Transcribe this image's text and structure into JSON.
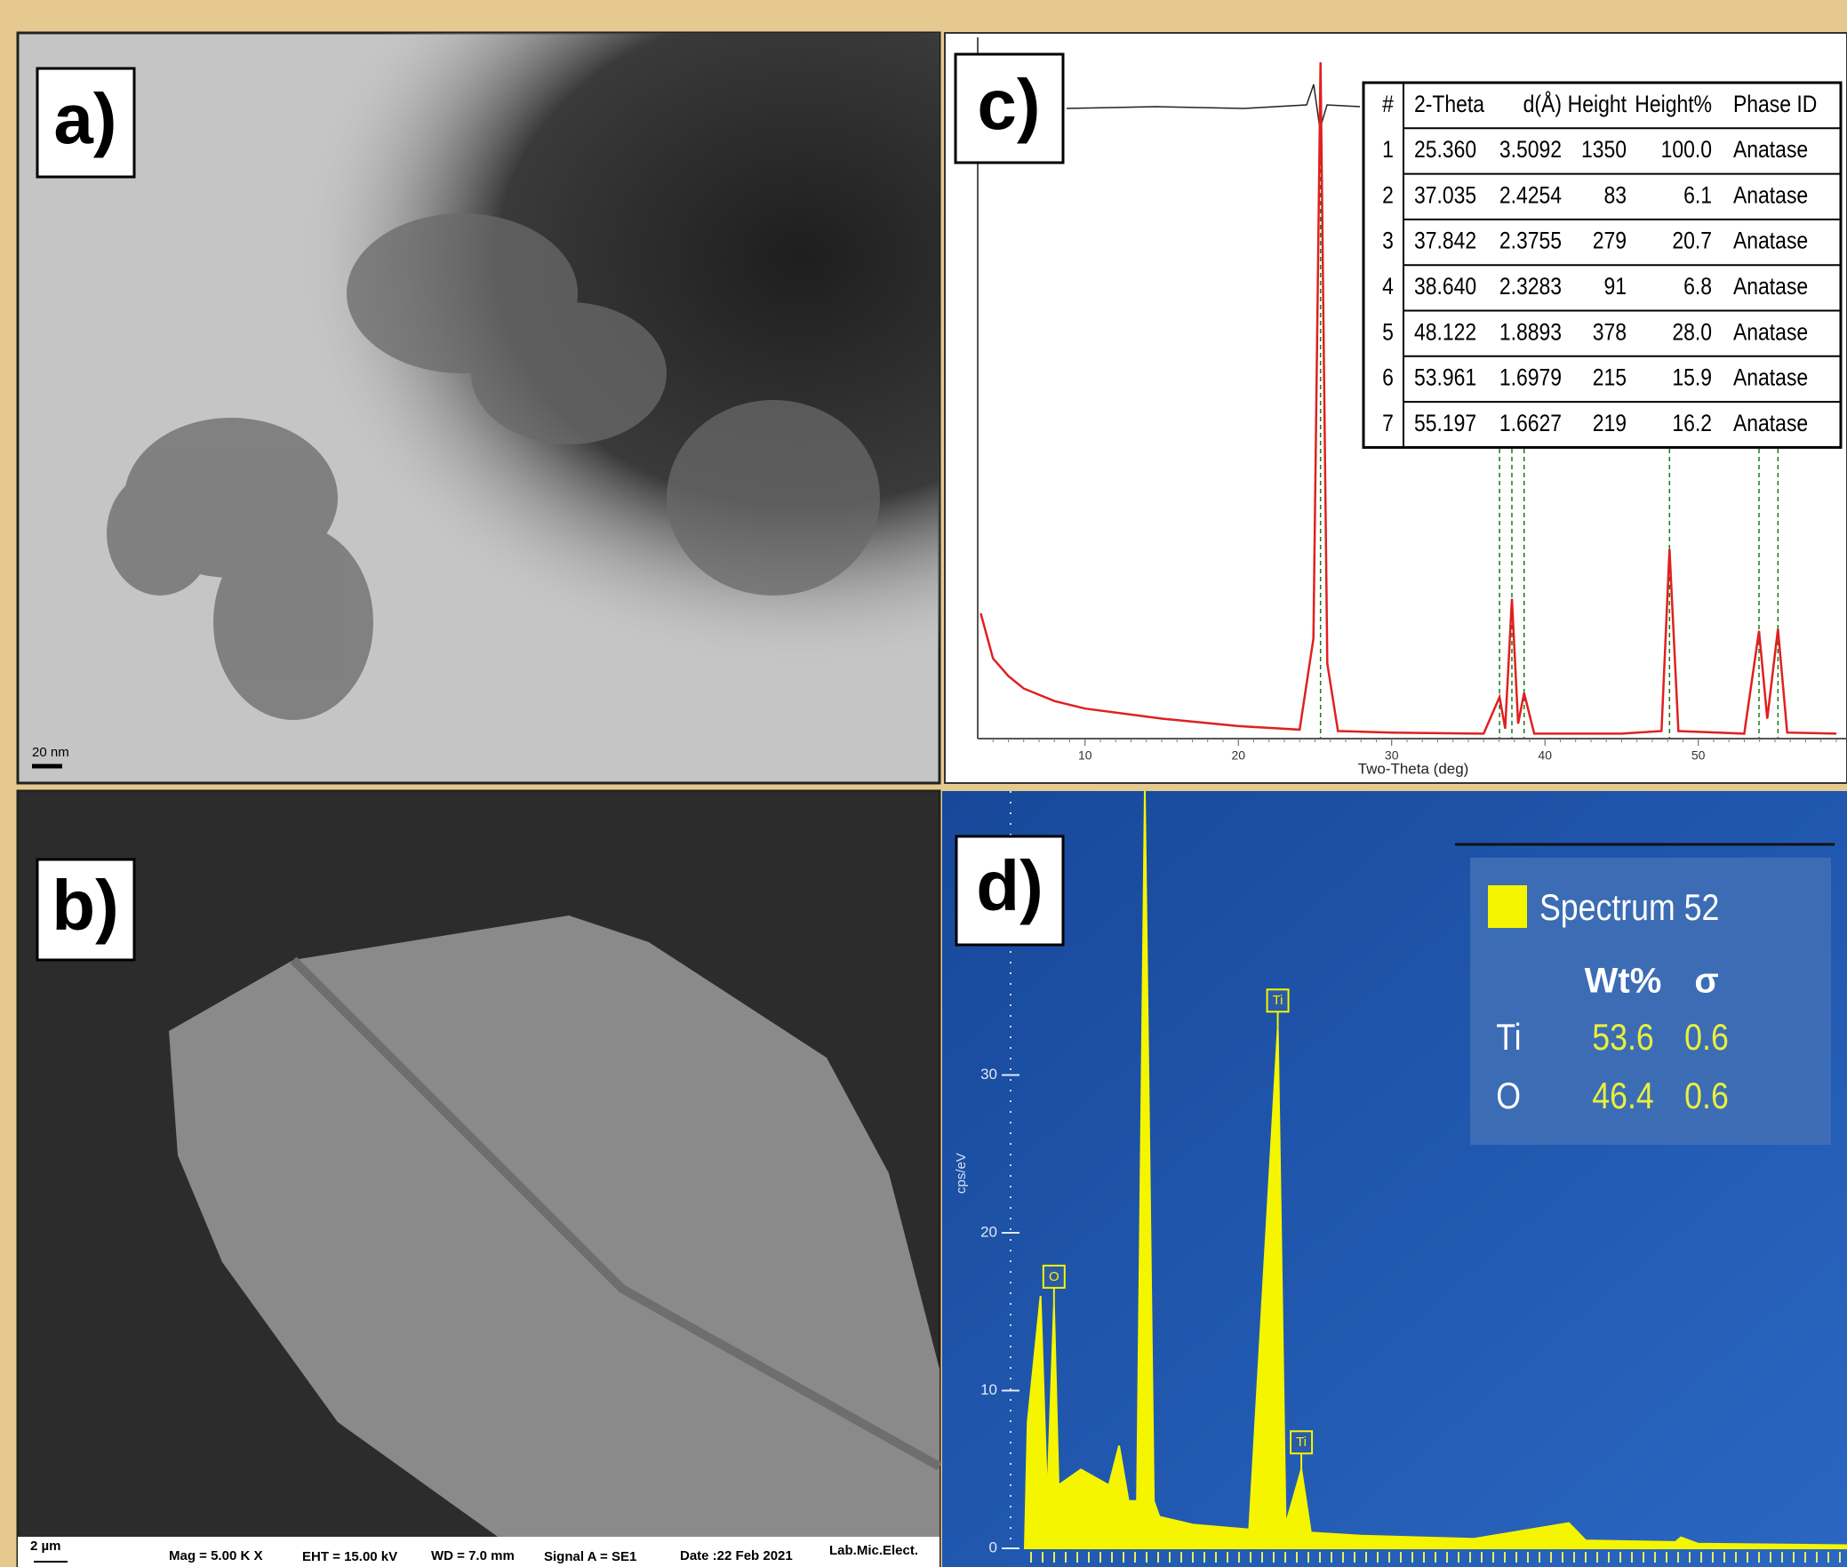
{
  "panels": {
    "a": "a)",
    "b": "b)",
    "c": "c)",
    "d": "d)"
  },
  "tem": {
    "scale_bar": "20 nm"
  },
  "sem": {
    "scale_bar": "2 µm",
    "mag": "Mag =   5.00 K X",
    "eht": "EHT = 15.00 kV",
    "wd": "WD =  7.0 mm",
    "signal": "Signal A = SE1",
    "date": "Date :22 Feb 2021",
    "lab": "Lab.Mic.Elect."
  },
  "xrd_table": {
    "header": [
      "#",
      "2-Theta",
      "d(Å)",
      "Height",
      "Height%",
      "Phase ID"
    ],
    "rows": [
      [
        "1",
        "25.360",
        "3.5092",
        "1350",
        "100.0",
        "Anatase"
      ],
      [
        "2",
        "37.035",
        "2.4254",
        "83",
        "6.1",
        "Anatase"
      ],
      [
        "3",
        "37.842",
        "2.3755",
        "279",
        "20.7",
        "Anatase"
      ],
      [
        "4",
        "38.640",
        "2.3283",
        "91",
        "6.8",
        "Anatase"
      ],
      [
        "5",
        "48.122",
        "1.8893",
        "378",
        "28.0",
        "Anatase"
      ],
      [
        "6",
        "53.961",
        "1.6979",
        "215",
        "15.9",
        "Anatase"
      ],
      [
        "7",
        "55.197",
        "1.6627",
        "219",
        "16.2",
        "Anatase"
      ]
    ]
  },
  "eds_table": {
    "spectrum": "Spectrum 52",
    "header": [
      "Wt%",
      "σ"
    ],
    "rows": [
      [
        "Ti",
        "53.6",
        "0.6"
      ],
      [
        "O",
        "46.4",
        "0.6"
      ]
    ]
  },
  "chart_data": [
    {
      "type": "line",
      "xlabel": "Two-Theta (deg)",
      "color": "#e02020",
      "x": [
        3.2,
        4,
        5,
        6,
        8,
        10,
        15,
        20,
        24,
        24.9,
        25.36,
        25.8,
        26.5,
        30,
        36,
        37.035,
        37.4,
        37.842,
        38.25,
        38.64,
        39.3,
        45,
        47.6,
        48.122,
        48.7,
        53,
        53.961,
        54.5,
        55.197,
        55.8,
        59
      ],
      "values": [
        250,
        160,
        125,
        100,
        75,
        60,
        40,
        25,
        18,
        200,
        1350,
        150,
        15,
        12,
        10,
        83,
        20,
        279,
        30,
        91,
        10,
        10,
        15,
        378,
        15,
        10,
        215,
        40,
        219,
        12,
        10
      ],
      "reference_peaks": [
        25.36,
        37.035,
        37.842,
        38.64,
        48.122,
        53.961,
        55.197
      ],
      "xlim": [
        3,
        59.7
      ],
      "ylim": [
        0,
        1400
      ],
      "xticks": [
        10,
        20,
        30,
        40,
        50
      ]
    },
    {
      "type": "line",
      "ylabel": "cps/eV",
      "color": "#f5f500",
      "x": [
        0,
        0.05,
        0.28,
        0.4,
        0.52,
        0.6,
        1,
        1.5,
        1.68,
        1.85,
        2.0,
        2.14,
        2.3,
        2.4,
        3,
        4,
        4.51,
        4.65,
        4.93,
        5.1,
        6,
        8,
        9.7,
        10,
        11.6,
        11.7,
        12,
        14.66
      ],
      "values": [
        0,
        8,
        16,
        3,
        15.5,
        4,
        5,
        4,
        6.5,
        3,
        3,
        48,
        3,
        2,
        1.5,
        1.2,
        33,
        1.5,
        5,
        1,
        0.8,
        0.6,
        1.6,
        0.5,
        0.4,
        0.7,
        0.3,
        0.2
      ],
      "annotations": [
        {
          "label": "O",
          "x": 0.52,
          "y": 15.5
        },
        {
          "label": "Ti",
          "x": 4.51,
          "y": 33
        },
        {
          "label": "Ti",
          "x": 4.93,
          "y": 5
        }
      ],
      "xlim": [
        0,
        14.66
      ],
      "ylim": [
        0,
        48
      ],
      "yticks": [
        0,
        10,
        20,
        30
      ]
    }
  ]
}
